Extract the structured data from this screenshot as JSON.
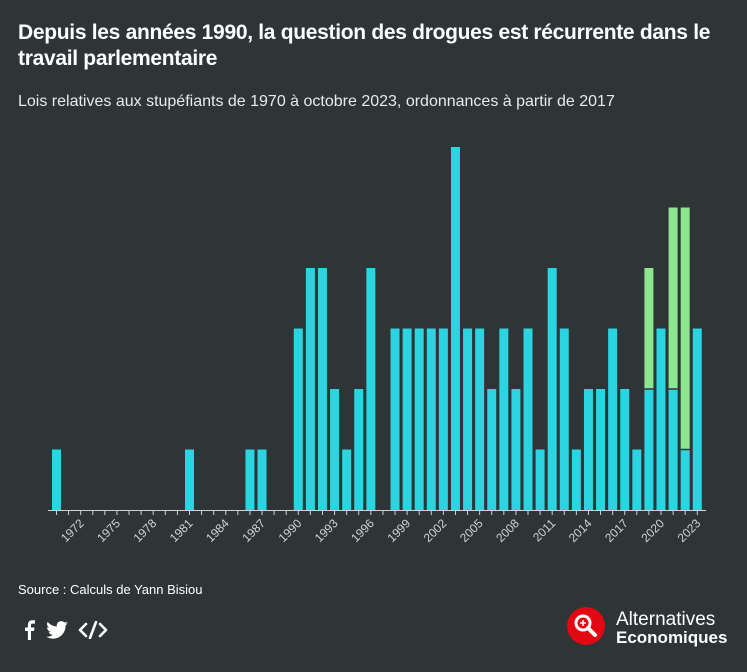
{
  "title": "Depuis les années 1990, la question des drogues est récurrente dans le travail parlementaire",
  "subtitle": "Lois relatives aux stupéfiants de 1970 à octobre 2023, ordonnances à partir de 2017",
  "source": "Source : Calculs de Yann Bisiou",
  "brand": {
    "line1": "Alternatives",
    "line2": "Economiques",
    "accent": "#e30613"
  },
  "social": {
    "facebook_icon": "facebook-icon",
    "twitter_icon": "twitter-icon",
    "embed_icon": "embed-code-icon"
  },
  "colors": {
    "background": "#2f3437",
    "lois": "#2ad4e0",
    "ordonnances": "#8de58f",
    "axis": "#cfd3d5"
  },
  "chart_data": {
    "type": "bar",
    "stacked": true,
    "title": "Depuis les années 1990, la question des drogues est récurrente dans le travail parlementaire",
    "xlabel": "",
    "ylabel": "",
    "grid": false,
    "ylim": [
      0,
      6
    ],
    "categories": [
      1970,
      1971,
      1972,
      1973,
      1974,
      1975,
      1976,
      1977,
      1978,
      1979,
      1980,
      1981,
      1982,
      1983,
      1984,
      1985,
      1986,
      1987,
      1988,
      1989,
      1990,
      1991,
      1992,
      1993,
      1994,
      1995,
      1996,
      1997,
      1998,
      1999,
      2000,
      2001,
      2002,
      2003,
      2004,
      2005,
      2006,
      2007,
      2008,
      2009,
      2010,
      2011,
      2012,
      2013,
      2014,
      2015,
      2016,
      2017,
      2018,
      2019,
      2020,
      2021,
      2022,
      2023
    ],
    "tick_labels": [
      "1972",
      "1975",
      "1978",
      "1981",
      "1984",
      "1987",
      "1990",
      "1993",
      "1996",
      "1999",
      "2002",
      "2005",
      "2008",
      "2011",
      "2014",
      "2017",
      "2020",
      "2023"
    ],
    "series": [
      {
        "name": "Lois",
        "color": "#2ad4e0",
        "values": [
          1,
          0,
          0,
          0,
          0,
          0,
          0,
          0,
          0,
          0,
          0,
          1,
          0,
          0,
          0,
          0,
          1,
          1,
          0,
          0,
          3,
          4,
          4,
          2,
          1,
          2,
          4,
          0,
          3,
          3,
          3,
          3,
          3,
          6,
          3,
          3,
          2,
          3,
          2,
          3,
          1,
          4,
          3,
          1,
          2,
          2,
          3,
          2,
          1,
          2,
          3,
          2,
          1,
          3
        ]
      },
      {
        "name": "Ordonnances",
        "color": "#8de58f",
        "values": [
          0,
          0,
          0,
          0,
          0,
          0,
          0,
          0,
          0,
          0,
          0,
          0,
          0,
          0,
          0,
          0,
          0,
          0,
          0,
          0,
          0,
          0,
          0,
          0,
          0,
          0,
          0,
          0,
          0,
          0,
          0,
          0,
          0,
          0,
          0,
          0,
          0,
          0,
          0,
          0,
          0,
          0,
          0,
          0,
          0,
          0,
          0,
          0,
          0,
          2,
          0,
          3,
          4,
          0
        ]
      }
    ]
  }
}
